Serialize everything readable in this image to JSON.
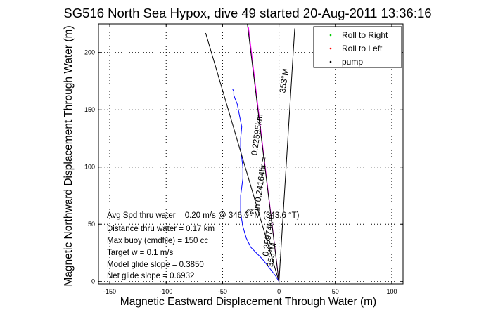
{
  "chart_data": {
    "type": "line",
    "title": "SG516 North Sea Hypox, dive 49 started 20-Aug-2011 13:36:16",
    "xlabel": "Magnetic Eastward Displacement Through Water (m)",
    "ylabel": "Magnetic Northward Displacement Through Water (m)",
    "xlim": [
      -160,
      110
    ],
    "ylim": [
      -2,
      225
    ],
    "xticks": [
      -150,
      -100,
      -50,
      0,
      50,
      100
    ],
    "yticks": [
      0,
      50,
      100,
      150,
      200
    ],
    "grid": true,
    "legend": {
      "position": "top-right",
      "entries": [
        {
          "label": "Roll to Right",
          "color": "#00cc00",
          "marker": "dot"
        },
        {
          "label": "Roll to Left",
          "color": "#ff0000",
          "marker": "dot"
        },
        {
          "label": "pump",
          "color": "#000000",
          "marker": "dot"
        }
      ]
    },
    "series": [
      {
        "color": "#0000ff",
        "x": [
          0,
          -3,
          -7,
          -11,
          -15,
          -20,
          -25,
          -29,
          -32,
          -34,
          -34,
          -32,
          -32,
          -33,
          -34,
          -34,
          -33,
          -35,
          -37,
          -39,
          -40,
          -40,
          -41
        ],
        "y": [
          0,
          5,
          10,
          15,
          20,
          25,
          30,
          38,
          48,
          60,
          75,
          90,
          100,
          108,
          115,
          125,
          135,
          145,
          155,
          160,
          163,
          166,
          168
        ]
      },
      {
        "color": "#000000",
        "x": [
          0,
          -65
        ],
        "y": [
          0,
          217
        ]
      },
      {
        "color": "#000000",
        "x": [
          0,
          14
        ],
        "y": [
          0,
          221
        ]
      },
      {
        "color": "#ff00ff",
        "x": [
          0,
          -27
        ],
        "y": [
          0,
          222
        ]
      },
      {
        "color": "#000000",
        "x": [
          0,
          -28
        ],
        "y": [
          0,
          225
        ]
      }
    ],
    "annotations": [
      {
        "text": "0.25974km",
        "x": -7,
        "y": 40,
        "rotation": -82
      },
      {
        "text": "353°M",
        "x": -4,
        "y": 23,
        "rotation": -82
      },
      {
        "text": "353°M",
        "x": 7,
        "y": 175,
        "rotation": -82
      },
      {
        "text": "0.22595km",
        "x": -17,
        "y": 128,
        "rotation": -82
      },
      {
        "text": "in 0.24164hr =",
        "x": -14,
        "y": 85,
        "rotation": -82
      },
      {
        "text": "@",
        "x": -26,
        "y": 58,
        "rotation": 0
      }
    ],
    "info_lines": [
      "Avg Spd thru water =  0.20 m/s @ 346.0   °M (343.6 °T)",
      "Distance thru water =  0.17 km",
      "Max buoy (cmdfile) = 150 cc",
      "Target w = 0.1 m/s",
      "Model glide slope = 0.3850",
      "Net glide slope = 0.6932"
    ]
  }
}
